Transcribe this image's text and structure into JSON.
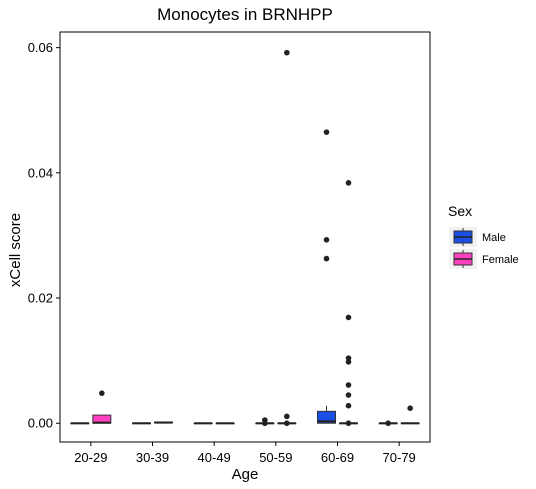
{
  "chart_data": {
    "type": "box",
    "title": "Monocytes in BRNHPP",
    "xlabel": "Age",
    "ylabel": "xCell score",
    "categories": [
      "20-29",
      "30-39",
      "40-49",
      "50-59",
      "60-69",
      "70-79"
    ],
    "ylim": [
      -0.003,
      0.0625
    ],
    "yticks": [
      0.0,
      0.02,
      0.04,
      0.06
    ],
    "ytick_labels": [
      "0.00",
      "0.02",
      "0.04",
      "0.06"
    ],
    "grid": false,
    "legend": {
      "title": "Sex",
      "position": "right"
    },
    "series": [
      {
        "name": "Male",
        "color": "#1a4fe6",
        "boxes": [
          {
            "category": "20-29",
            "min": 0,
            "q1": 0,
            "median": 0,
            "q3": 0,
            "max": 0,
            "outliers": []
          },
          {
            "category": "30-39",
            "min": 0,
            "q1": 0,
            "median": 0,
            "q3": 0,
            "max": 0,
            "outliers": []
          },
          {
            "category": "40-49",
            "min": 0,
            "q1": 0,
            "median": 0,
            "q3": 0,
            "max": 0,
            "outliers": []
          },
          {
            "category": "50-59",
            "min": 0,
            "q1": 0,
            "median": 0,
            "q3": 0,
            "max": 0,
            "outliers": [
              0.0005,
              0.0
            ]
          },
          {
            "category": "60-69",
            "min": 0,
            "q1": 0,
            "median": 0.0003,
            "q3": 0.0019,
            "max": 0.0028,
            "outliers": [
              0.0465,
              0.0293,
              0.0263
            ]
          },
          {
            "category": "70-79",
            "min": 0,
            "q1": 0,
            "median": 0,
            "q3": 0,
            "max": 0,
            "outliers": [
              0.0
            ]
          }
        ]
      },
      {
        "name": "Female",
        "color": "#ff40bf",
        "boxes": [
          {
            "category": "20-29",
            "min": 0,
            "q1": 0,
            "median": 0.0001,
            "q3": 0.0013,
            "max": 0.0013,
            "outliers": [
              0.0048
            ]
          },
          {
            "category": "30-39",
            "min": 0,
            "q1": 0.0001,
            "median": 0.0001,
            "q3": 0.0002,
            "max": 0.0002,
            "outliers": []
          },
          {
            "category": "40-49",
            "min": 0,
            "q1": 0,
            "median": 0,
            "q3": 0,
            "max": 0,
            "outliers": []
          },
          {
            "category": "50-59",
            "min": 0,
            "q1": 0,
            "median": 0,
            "q3": 0,
            "max": 0,
            "outliers": [
              0.0592,
              0.0011,
              0.0
            ]
          },
          {
            "category": "60-69",
            "min": 0,
            "q1": 0,
            "median": 0,
            "q3": 0,
            "max": 0,
            "outliers": [
              0.0384,
              0.0169,
              0.0104,
              0.0098,
              0.0061,
              0.0045,
              0.0028,
              0.0
            ]
          },
          {
            "category": "70-79",
            "min": 0,
            "q1": 0,
            "median": 0,
            "q3": 0,
            "max": 0,
            "outliers": [
              0.0024
            ]
          }
        ]
      }
    ]
  }
}
